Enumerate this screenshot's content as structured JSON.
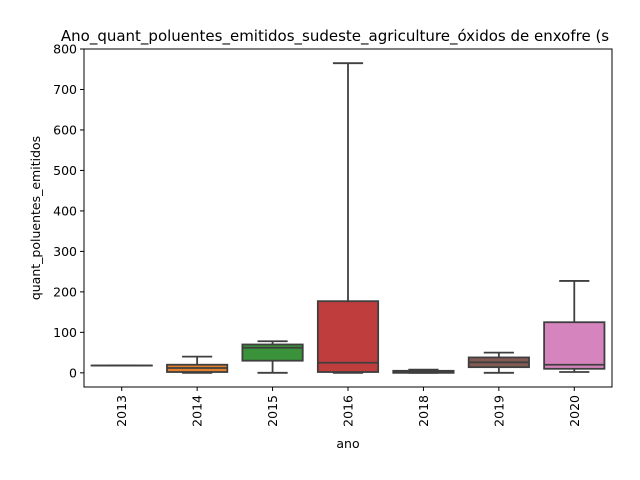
{
  "chart_data": {
    "type": "box",
    "title": "Ano_quant_poluentes_emitidos_sudeste_agriculture_óxidos de enxofre (s",
    "xlabel": "ano",
    "ylabel": "quant_poluentes_emitidos",
    "ylim": [
      -35,
      800
    ],
    "yticks": [
      0,
      100,
      200,
      300,
      400,
      500,
      600,
      700,
      800
    ],
    "grid": false,
    "categories": [
      "2013",
      "2014",
      "2015",
      "2016",
      "2018",
      "2019",
      "2020"
    ],
    "boxes": [
      {
        "category": "2013",
        "color": "#3274a1",
        "min": 18,
        "q1": 18,
        "median": 18,
        "q3": 18,
        "max": 18
      },
      {
        "category": "2014",
        "color": "#e1812c",
        "min": 0,
        "q1": 2,
        "median": 12,
        "q3": 20,
        "max": 40
      },
      {
        "category": "2015",
        "color": "#3a923a",
        "min": 0,
        "q1": 30,
        "median": 62,
        "q3": 70,
        "max": 78
      },
      {
        "category": "2016",
        "color": "#c03d3e",
        "min": 0,
        "q1": 2,
        "median": 25,
        "q3": 177,
        "max": 765
      },
      {
        "category": "2018",
        "color": "#9372b2",
        "min": 0,
        "q1": 0,
        "median": 2,
        "q3": 5,
        "max": 8
      },
      {
        "category": "2019",
        "color": "#845b53",
        "min": 0,
        "q1": 14,
        "median": 26,
        "q3": 38,
        "max": 50
      },
      {
        "category": "2020",
        "color": "#d684bd",
        "min": 2,
        "q1": 10,
        "median": 20,
        "q3": 125,
        "max": 227
      }
    ]
  }
}
